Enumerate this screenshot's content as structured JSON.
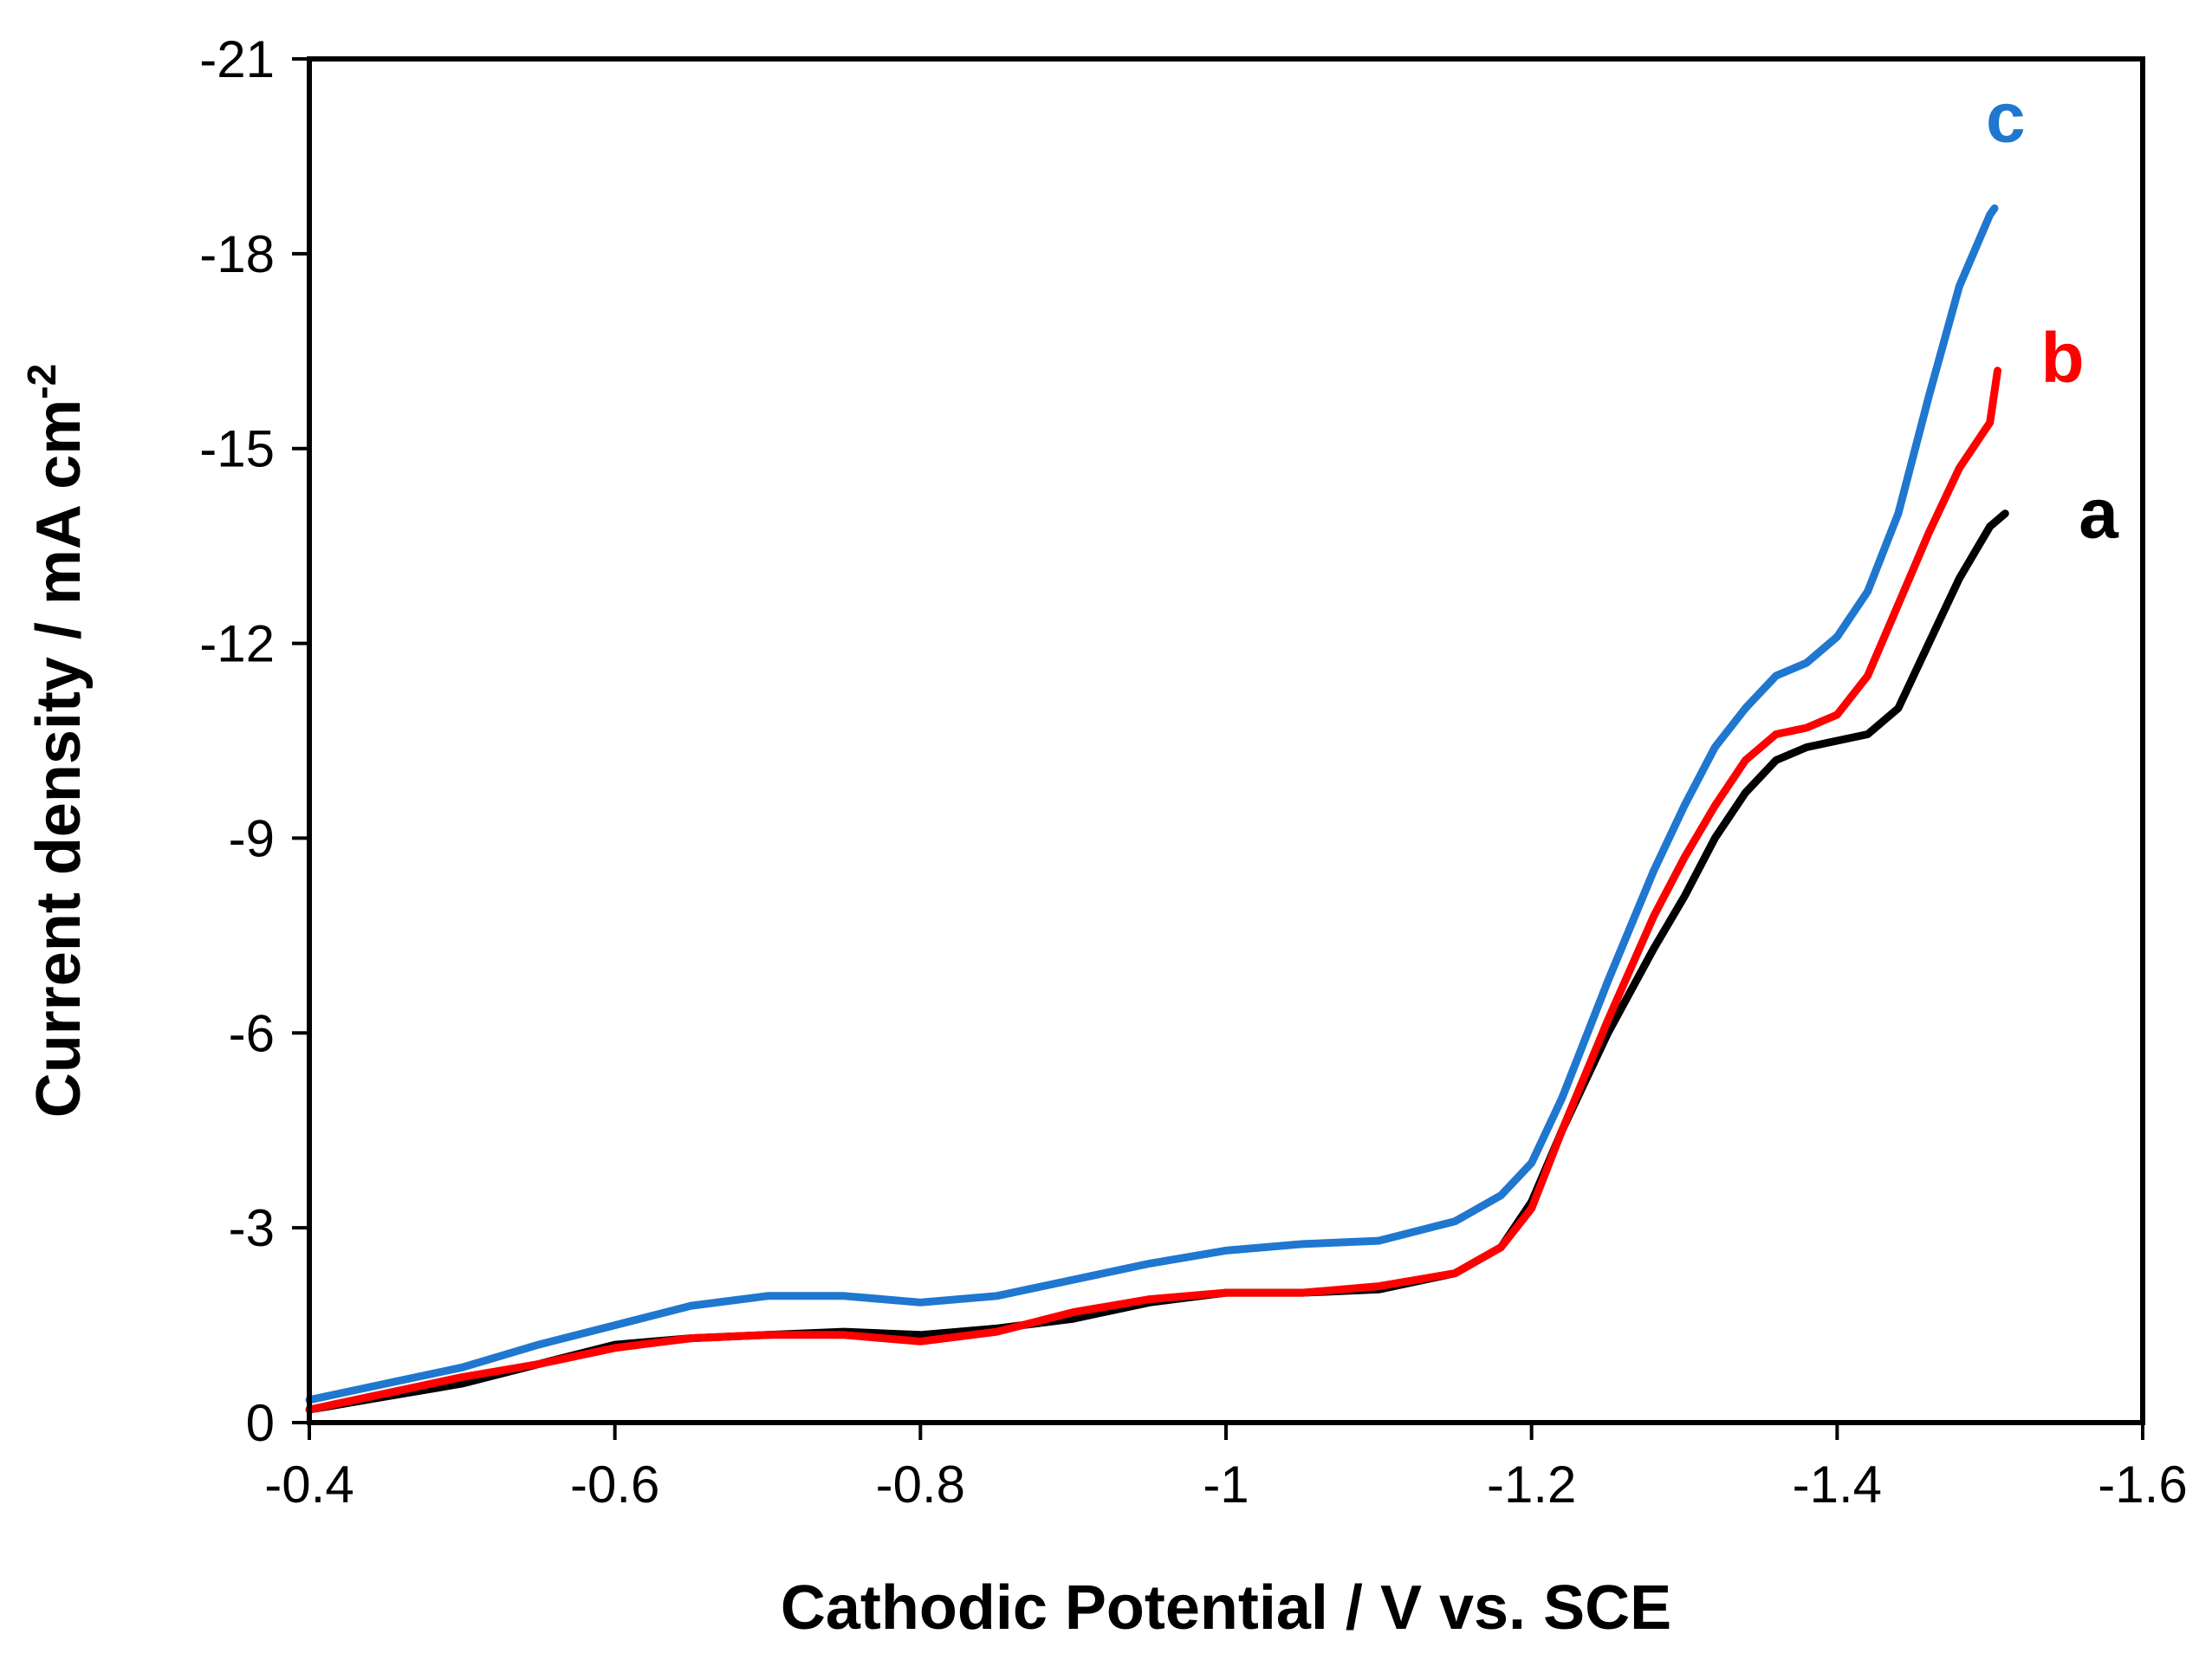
{
  "chart_data": {
    "type": "line",
    "title": "",
    "xlabel": "Cathodic Potential / V vs. SCE",
    "ylabel": "Current density / mA cm",
    "ylabel_superscript": "-2",
    "xlim": [
      -0.4,
      -1.6
    ],
    "ylim": [
      0,
      -21
    ],
    "x_ticks": [
      -0.4,
      -0.6,
      -0.8,
      -1,
      -1.2,
      -1.4,
      -1.6
    ],
    "x_tick_labels": [
      "-0.4",
      "-0.6",
      "-0.8",
      "-1",
      "-1.2",
      "-1.4",
      "-1.6"
    ],
    "y_ticks": [
      0,
      -3,
      -6,
      -9,
      -12,
      -15,
      -18,
      -21
    ],
    "y_tick_labels": [
      "0",
      "-3",
      "-6",
      "-9",
      "-12",
      "-15",
      "-18",
      "-21"
    ],
    "grid": false,
    "series": [
      {
        "name": "a",
        "color": "#000000",
        "x": [
          -0.4,
          -0.45,
          -0.5,
          -0.55,
          -0.6,
          -0.65,
          -0.7,
          -0.75,
          -0.8,
          -0.85,
          -0.9,
          -0.95,
          -1.0,
          -1.05,
          -1.1,
          -1.15,
          -1.18,
          -1.2,
          -1.22,
          -1.25,
          -1.28,
          -1.3,
          -1.32,
          -1.34,
          -1.36,
          -1.38,
          -1.4,
          -1.42,
          -1.44,
          -1.46,
          -1.48,
          -1.5,
          -1.51
        ],
        "y": [
          -0.2,
          -0.4,
          -0.6,
          -0.9,
          -1.2,
          -1.3,
          -1.35,
          -1.4,
          -1.35,
          -1.45,
          -1.6,
          -1.85,
          -2.0,
          -2.0,
          -2.05,
          -2.3,
          -2.7,
          -3.4,
          -4.5,
          -6.0,
          -7.3,
          -8.1,
          -9.0,
          -9.7,
          -10.2,
          -10.4,
          -10.5,
          -10.6,
          -11.0,
          -12.0,
          -13.0,
          -13.8,
          -14.0
        ]
      },
      {
        "name": "b",
        "color": "#ff0000",
        "x": [
          -0.4,
          -0.45,
          -0.5,
          -0.55,
          -0.6,
          -0.65,
          -0.7,
          -0.75,
          -0.8,
          -0.85,
          -0.9,
          -0.95,
          -1.0,
          -1.05,
          -1.1,
          -1.15,
          -1.18,
          -1.2,
          -1.22,
          -1.25,
          -1.28,
          -1.3,
          -1.32,
          -1.34,
          -1.36,
          -1.38,
          -1.4,
          -1.42,
          -1.44,
          -1.46,
          -1.48,
          -1.5,
          -1.505
        ],
        "y": [
          -0.2,
          -0.45,
          -0.7,
          -0.9,
          -1.15,
          -1.3,
          -1.35,
          -1.35,
          -1.25,
          -1.4,
          -1.7,
          -1.9,
          -2.0,
          -2.0,
          -2.1,
          -2.3,
          -2.7,
          -3.3,
          -4.5,
          -6.2,
          -7.8,
          -8.7,
          -9.5,
          -10.2,
          -10.6,
          -10.7,
          -10.9,
          -11.5,
          -12.6,
          -13.7,
          -14.7,
          -15.4,
          -16.2
        ]
      },
      {
        "name": "c",
        "color": "#1f77d0",
        "x": [
          -0.4,
          -0.45,
          -0.5,
          -0.55,
          -0.6,
          -0.65,
          -0.7,
          -0.75,
          -0.8,
          -0.85,
          -0.9,
          -0.95,
          -1.0,
          -1.05,
          -1.1,
          -1.15,
          -1.18,
          -1.2,
          -1.22,
          -1.25,
          -1.28,
          -1.3,
          -1.32,
          -1.34,
          -1.36,
          -1.38,
          -1.4,
          -1.42,
          -1.44,
          -1.46,
          -1.48,
          -1.5,
          -1.503
        ],
        "y": [
          -0.35,
          -0.6,
          -0.85,
          -1.2,
          -1.5,
          -1.8,
          -1.95,
          -1.95,
          -1.85,
          -1.95,
          -2.2,
          -2.45,
          -2.65,
          -2.75,
          -2.8,
          -3.1,
          -3.5,
          -4.0,
          -5.0,
          -6.8,
          -8.5,
          -9.5,
          -10.4,
          -11.0,
          -11.5,
          -11.7,
          -12.1,
          -12.8,
          -14.0,
          -15.8,
          -17.5,
          -18.6,
          -18.7
        ]
      }
    ]
  }
}
